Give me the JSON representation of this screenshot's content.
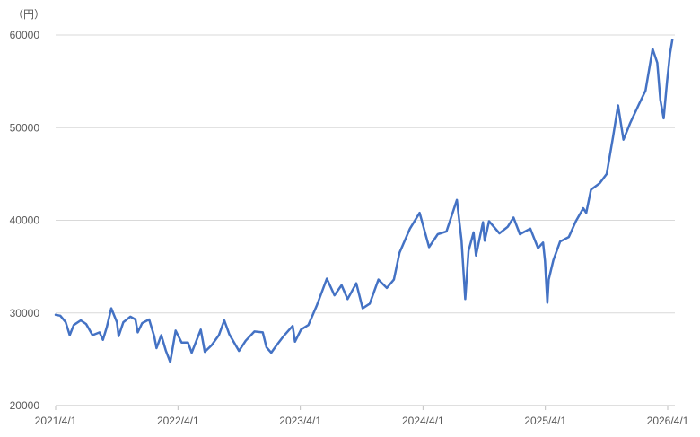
{
  "chart_data": {
    "type": "line",
    "unit_label": "（円）",
    "ylim": [
      20000,
      60000
    ],
    "y_ticks": [
      "20000",
      "30000",
      "40000",
      "50000",
      "60000"
    ],
    "x_ticks": [
      "2021/4/1",
      "2022/4/1",
      "2023/4/1",
      "2024/4/1",
      "2025/4/1",
      "2026/4/1"
    ],
    "x_range": [
      "2021-04-01",
      "2026-04-15"
    ],
    "grid": "horizontal",
    "legend": "none",
    "series": [
      {
        "color": "#4472c4",
        "points": [
          [
            "2021-04-01",
            29800
          ],
          [
            "2021-04-15",
            29700
          ],
          [
            "2021-05-01",
            29000
          ],
          [
            "2021-05-13",
            27600
          ],
          [
            "2021-05-25",
            28700
          ],
          [
            "2021-06-15",
            29200
          ],
          [
            "2021-07-01",
            28800
          ],
          [
            "2021-07-20",
            27600
          ],
          [
            "2021-08-10",
            27900
          ],
          [
            "2021-08-20",
            27100
          ],
          [
            "2021-09-01",
            28500
          ],
          [
            "2021-09-14",
            30500
          ],
          [
            "2021-10-01",
            29000
          ],
          [
            "2021-10-06",
            27500
          ],
          [
            "2021-10-20",
            29000
          ],
          [
            "2021-11-10",
            29600
          ],
          [
            "2021-11-25",
            29300
          ],
          [
            "2021-12-02",
            27900
          ],
          [
            "2021-12-15",
            28900
          ],
          [
            "2022-01-05",
            29300
          ],
          [
            "2022-01-20",
            27500
          ],
          [
            "2022-01-27",
            26200
          ],
          [
            "2022-02-10",
            27600
          ],
          [
            "2022-02-24",
            25900
          ],
          [
            "2022-03-09",
            24700
          ],
          [
            "2022-03-25",
            28100
          ],
          [
            "2022-04-12",
            26800
          ],
          [
            "2022-05-01",
            26800
          ],
          [
            "2022-05-12",
            25700
          ],
          [
            "2022-06-08",
            28200
          ],
          [
            "2022-06-20",
            25800
          ],
          [
            "2022-07-10",
            26500
          ],
          [
            "2022-08-01",
            27600
          ],
          [
            "2022-08-17",
            29200
          ],
          [
            "2022-09-01",
            27700
          ],
          [
            "2022-09-30",
            25900
          ],
          [
            "2022-10-20",
            27000
          ],
          [
            "2022-11-15",
            28000
          ],
          [
            "2022-12-10",
            27900
          ],
          [
            "2022-12-21",
            26300
          ],
          [
            "2023-01-04",
            25700
          ],
          [
            "2023-01-20",
            26500
          ],
          [
            "2023-02-10",
            27500
          ],
          [
            "2023-03-09",
            28600
          ],
          [
            "2023-03-16",
            26900
          ],
          [
            "2023-04-03",
            28200
          ],
          [
            "2023-04-25",
            28700
          ],
          [
            "2023-05-20",
            30800
          ],
          [
            "2023-06-19",
            33700
          ],
          [
            "2023-07-12",
            31900
          ],
          [
            "2023-08-02",
            33000
          ],
          [
            "2023-08-20",
            31500
          ],
          [
            "2023-09-15",
            33200
          ],
          [
            "2023-10-04",
            30500
          ],
          [
            "2023-10-25",
            31000
          ],
          [
            "2023-11-20",
            33600
          ],
          [
            "2023-12-15",
            32700
          ],
          [
            "2024-01-05",
            33600
          ],
          [
            "2024-01-22",
            36500
          ],
          [
            "2024-02-22",
            39100
          ],
          [
            "2024-03-22",
            40800
          ],
          [
            "2024-04-19",
            37100
          ],
          [
            "2024-05-15",
            38500
          ],
          [
            "2024-06-10",
            38800
          ],
          [
            "2024-07-11",
            42200
          ],
          [
            "2024-07-25",
            37800
          ],
          [
            "2024-08-05",
            31500
          ],
          [
            "2024-08-15",
            36700
          ],
          [
            "2024-08-30",
            38700
          ],
          [
            "2024-09-06",
            36200
          ],
          [
            "2024-09-27",
            39800
          ],
          [
            "2024-10-02",
            37800
          ],
          [
            "2024-10-15",
            39900
          ],
          [
            "2024-11-15",
            38600
          ],
          [
            "2024-12-10",
            39300
          ],
          [
            "2024-12-27",
            40300
          ],
          [
            "2025-01-15",
            38500
          ],
          [
            "2025-02-15",
            39100
          ],
          [
            "2025-03-10",
            37000
          ],
          [
            "2025-03-25",
            37600
          ],
          [
            "2025-03-31",
            35600
          ],
          [
            "2025-04-07",
            31100
          ],
          [
            "2025-04-11",
            33600
          ],
          [
            "2025-04-25",
            35700
          ],
          [
            "2025-05-15",
            37700
          ],
          [
            "2025-06-10",
            38200
          ],
          [
            "2025-07-01",
            39900
          ],
          [
            "2025-07-23",
            41300
          ],
          [
            "2025-08-01",
            40800
          ],
          [
            "2025-08-15",
            43300
          ],
          [
            "2025-09-10",
            44000
          ],
          [
            "2025-10-01",
            45000
          ],
          [
            "2025-10-20",
            49000
          ],
          [
            "2025-11-04",
            52400
          ],
          [
            "2025-11-20",
            48700
          ],
          [
            "2025-12-10",
            50500
          ],
          [
            "2026-01-05",
            52500
          ],
          [
            "2026-01-25",
            54000
          ],
          [
            "2026-02-15",
            58500
          ],
          [
            "2026-03-01",
            57000
          ],
          [
            "2026-03-10",
            53000
          ],
          [
            "2026-03-20",
            51000
          ],
          [
            "2026-03-30",
            55000
          ],
          [
            "2026-04-08",
            58000
          ],
          [
            "2026-04-15",
            59500
          ]
        ]
      }
    ]
  }
}
